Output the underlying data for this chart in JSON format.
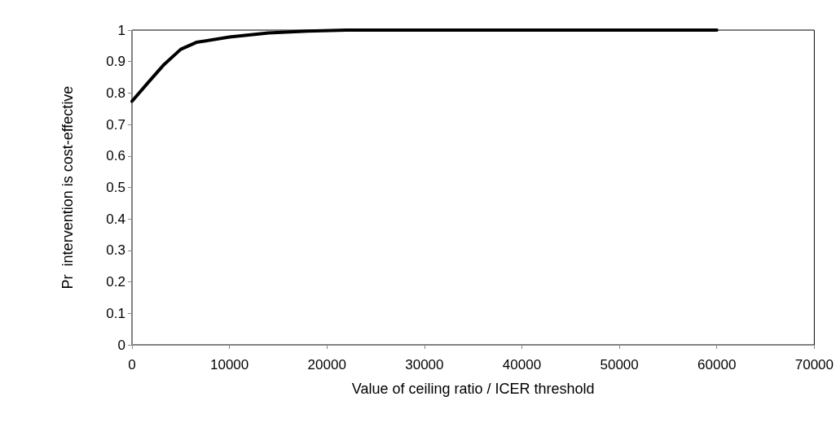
{
  "chart_data": {
    "type": "line",
    "xlabel": "Value of ceiling ratio / ICER threshold",
    "ylabel": "Pr  intervention is cost-effective",
    "x": [
      0,
      1700,
      3300,
      5000,
      6600,
      10000,
      14000,
      18000,
      22000,
      30000,
      40000,
      50000,
      60000
    ],
    "series": [
      {
        "color": "#000000",
        "values": [
          0.774,
          0.835,
          0.891,
          0.939,
          0.961,
          0.978,
          0.991,
          0.997,
          1,
          1,
          1,
          1,
          1
        ]
      }
    ],
    "xlim": [
      0,
      70000
    ],
    "xticks": [
      0,
      10000,
      20000,
      30000,
      40000,
      50000,
      60000,
      70000
    ],
    "ylim": [
      0,
      1
    ],
    "yticks": [
      0,
      0.1,
      0.2,
      0.3,
      0.4,
      0.5,
      0.6,
      0.7,
      0.8,
      0.9,
      1
    ],
    "grid": false,
    "marker": "none",
    "line_style": "solid"
  }
}
